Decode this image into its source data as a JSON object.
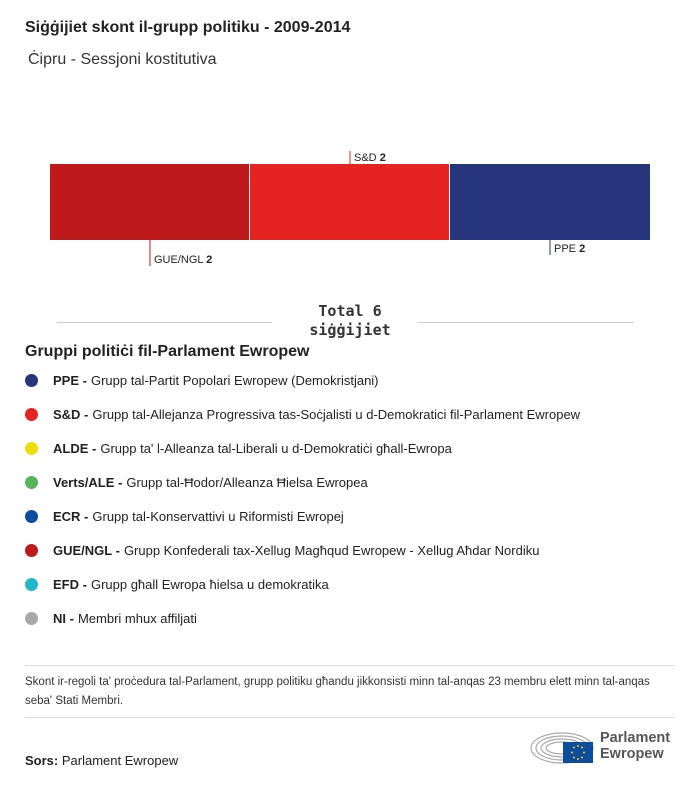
{
  "header": {
    "title": "Siġġijiet skont il-grupp politiku - 2009-2014",
    "subtitle": "Ċipru - Sessjoni kostitutiva"
  },
  "chart_data": {
    "type": "bar",
    "orientation": "horizontal-stacked",
    "segments": [
      {
        "name": "GUE/NGL",
        "value": 2,
        "color": "#c0191c"
      },
      {
        "name": "S&D",
        "value": 2,
        "color": "#e52422"
      },
      {
        "name": "PPE",
        "value": 2,
        "color": "#27367c"
      }
    ],
    "total_label": "Total 6",
    "total_unit": "siġġijiet"
  },
  "legend": {
    "title": "Gruppi politiċi fil-Parlament Ewropew",
    "items": [
      {
        "abbr": "PPE -",
        "desc": "Grupp tal-Partit Popolari Ewropew (Demokristjani)",
        "color": "#27367c"
      },
      {
        "abbr": "S&D -",
        "desc": "Grupp tal-Allejanza Progressiva tas-Soċjalisti u d-Demokratici fil-Parlament Ewropew",
        "color": "#e52422"
      },
      {
        "abbr": "ALDE -",
        "desc": "Grupp ta' l-Alleanza tal-Liberali u d-Demokratiċi għall-Ewropa",
        "color": "#efdc0c"
      },
      {
        "abbr": "Verts/ALE -",
        "desc": "Grupp tal-Ħodor/Alleanza Ħielsa Ewropea",
        "color": "#57b45a"
      },
      {
        "abbr": "ECR -",
        "desc": "Grupp tal-Konservattivi u Riformisti Ewropej",
        "color": "#0e4d9c"
      },
      {
        "abbr": "GUE/NGL -",
        "desc": "Grupp Konfederali tax-Xellug Magħqud Ewropew - Xellug Aħdar Nordiku",
        "color": "#c0191c"
      },
      {
        "abbr": "EFD -",
        "desc": "Grupp għall Ewropa ħielsa u demokratika",
        "color": "#23b6c8"
      },
      {
        "abbr": "NI -",
        "desc": "Membri mhux affiljati",
        "color": "#a8a8a8"
      }
    ]
  },
  "footer": {
    "note": "Skont ir-regoli ta' proċedura tal-Parlament, grupp politiku għandu jikkonsisti minn tal-anqas 23 membru elett minn tal-anqas seba' Stati Membri.",
    "source_label": "Sors:",
    "source": "Parlament Ewropew",
    "logo_line1": "Parlament",
    "logo_line2": "Ewropew"
  }
}
